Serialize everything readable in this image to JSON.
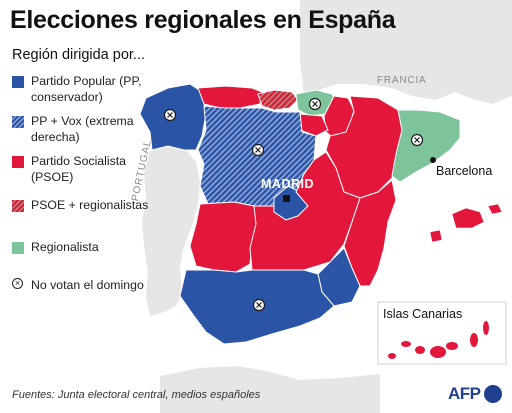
{
  "title": "Elecciones regionales en España",
  "subtitle": "Región dirigida por...",
  "legend": [
    {
      "key": "pp",
      "label": "Partido Popular (PP, conservador)",
      "color": "#2a55a6"
    },
    {
      "key": "ppvox",
      "label": "PP + Vox (extrema derecha)",
      "color": "#2a55a6"
    },
    {
      "key": "psoe",
      "label": "Partido Socialista (PSOE)",
      "color": "#e3173b"
    },
    {
      "key": "psoereg",
      "label": "PSOE + regionalistas",
      "color": "#e3173b"
    },
    {
      "key": "reg",
      "label": "Regionalista",
      "color": "#7dc49a"
    },
    {
      "key": "novote",
      "label": "No votan el domingo",
      "color": "#ffffff"
    }
  ],
  "map_labels": {
    "francia": "FRANCIA",
    "portugal": "PORTUGAL",
    "madrid": "MADRID",
    "barcelona": "Barcelona",
    "canarias": "Islas Canarias"
  },
  "regions": [
    {
      "name": "Galicia",
      "governed_by": "pp",
      "no_vota": true
    },
    {
      "name": "Asturias",
      "governed_by": "psoe",
      "no_vota": false
    },
    {
      "name": "Cantabria",
      "governed_by": "psoereg",
      "no_vota": false
    },
    {
      "name": "País Vasco",
      "governed_by": "reg",
      "no_vota": true
    },
    {
      "name": "Navarra",
      "governed_by": "psoe",
      "no_vota": false
    },
    {
      "name": "Aragón",
      "governed_by": "psoe",
      "no_vota": false
    },
    {
      "name": "Cataluña",
      "governed_by": "reg",
      "no_vota": true
    },
    {
      "name": "Castilla y León",
      "governed_by": "ppvox",
      "no_vota": true
    },
    {
      "name": "La Rioja",
      "governed_by": "psoe",
      "no_vota": false
    },
    {
      "name": "Madrid",
      "governed_by": "pp",
      "no_vota": false
    },
    {
      "name": "Extremadura",
      "governed_by": "psoe",
      "no_vota": false
    },
    {
      "name": "Castilla-La Mancha",
      "governed_by": "psoe",
      "no_vota": false
    },
    {
      "name": "Comunidad Valenciana",
      "governed_by": "psoe",
      "no_vota": false
    },
    {
      "name": "Murcia",
      "governed_by": "pp",
      "no_vota": false
    },
    {
      "name": "Andalucía",
      "governed_by": "pp",
      "no_vota": true
    },
    {
      "name": "Islas Baleares",
      "governed_by": "psoe",
      "no_vota": false
    },
    {
      "name": "Canarias",
      "governed_by": "psoe",
      "no_vota": false
    }
  ],
  "colors": {
    "pp": "#2a55a6",
    "ppvox_stripe": "#8ea6d8",
    "psoe": "#e3173b",
    "psoereg_stripe": "#a9917d",
    "reg": "#7dc49a",
    "land": "#e6e6e6",
    "sea": "#ffffff",
    "border": "#ffffff"
  },
  "source": "Fuentes: Junta electoral central, medios españoles",
  "logo": "AFP"
}
